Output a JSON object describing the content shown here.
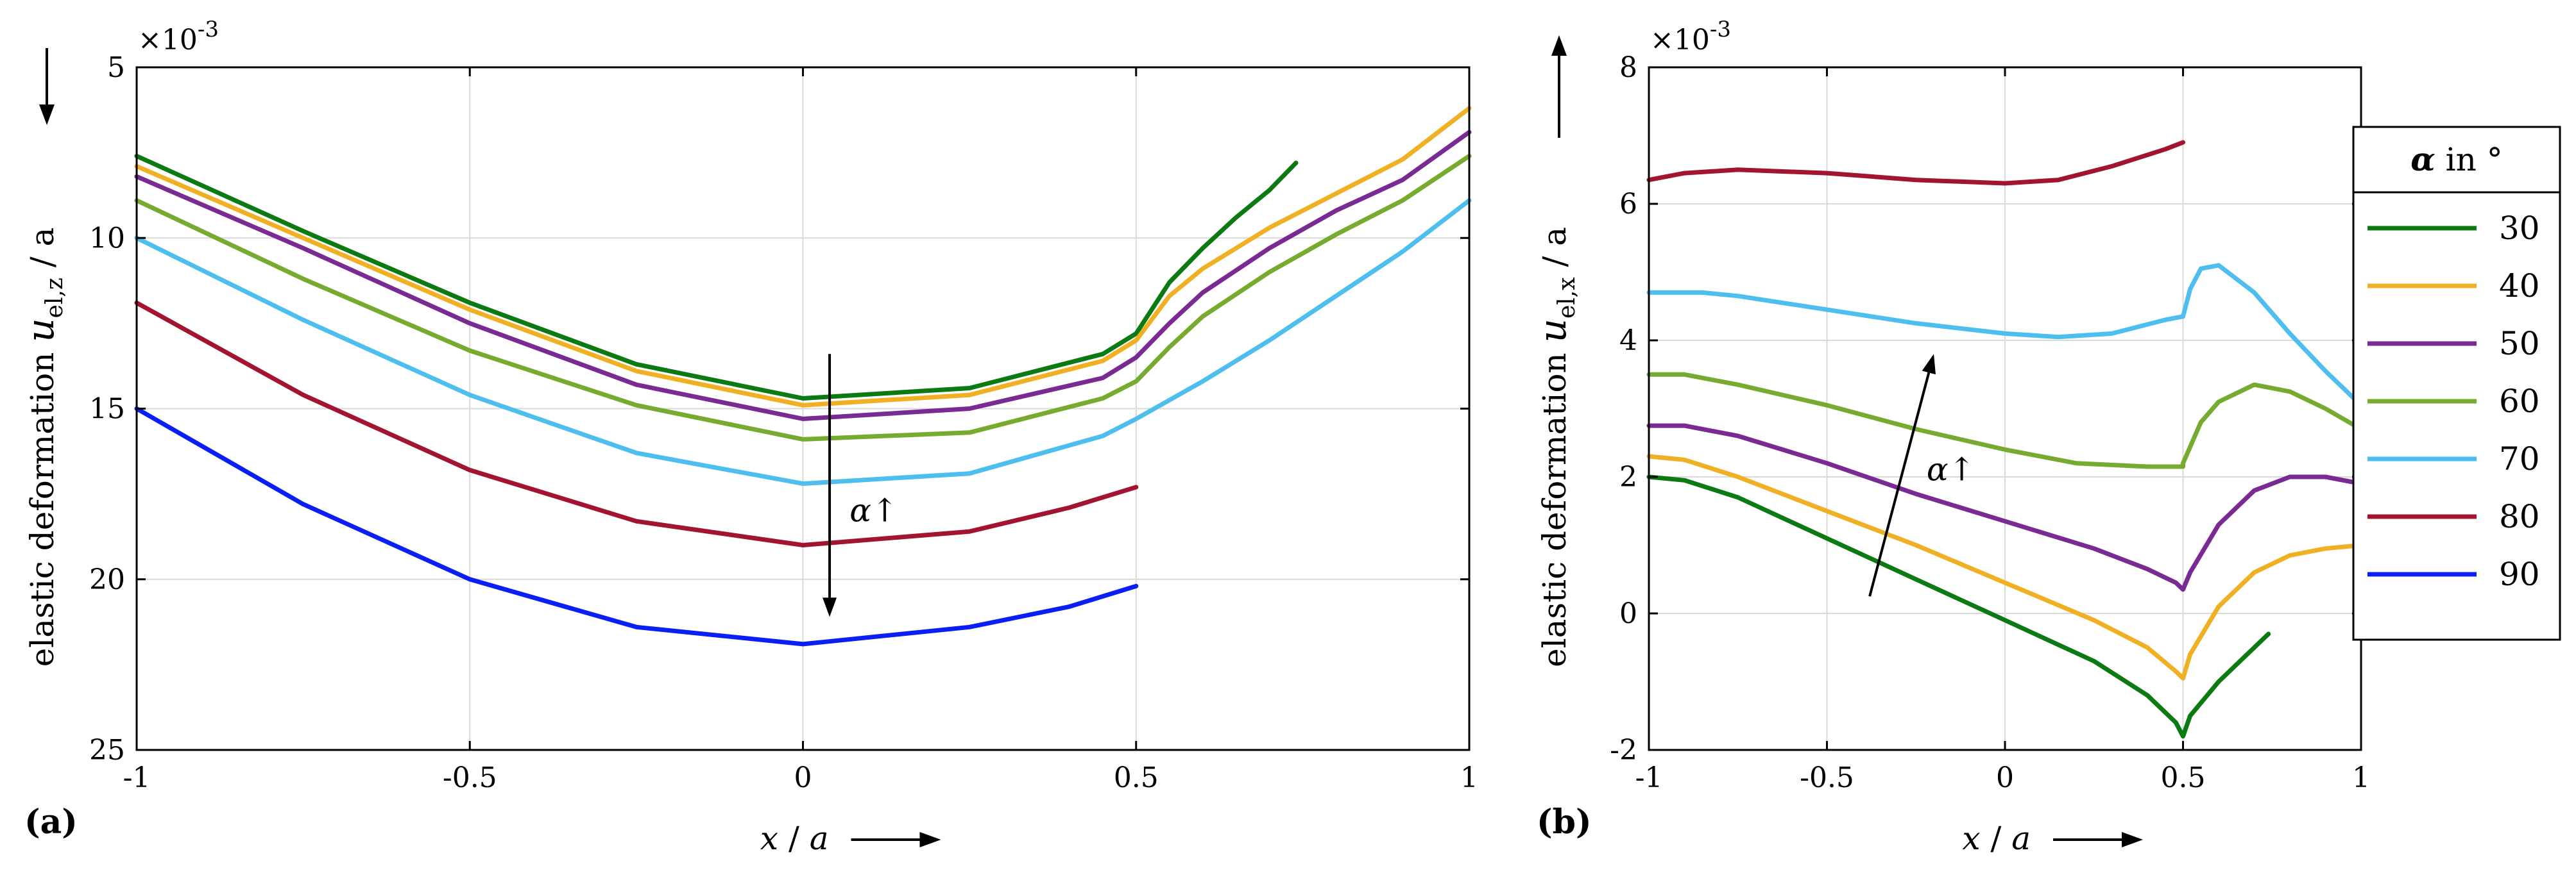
{
  "figure": {
    "legend": {
      "title_symbol": "α",
      "title_suffix": "in °",
      "entries": [
        {
          "label": "30",
          "color": "#0b7a13"
        },
        {
          "label": "40",
          "color": "#f0b023"
        },
        {
          "label": "50",
          "color": "#7a2b93"
        },
        {
          "label": "60",
          "color": "#76ab2f"
        },
        {
          "label": "70",
          "color": "#4dbeee"
        },
        {
          "label": "80",
          "color": "#a2142f"
        },
        {
          "label": "90",
          "color": "#0a1ff5"
        }
      ]
    }
  },
  "chart_data": [
    {
      "type": "line",
      "panel_label": "(a)",
      "exponent_label": "×10",
      "exponent_power": "-3",
      "x_label_var": "x",
      "x_label_sep": " / ",
      "x_label_unit": "a",
      "y_label_text": "elastic deformation",
      "y_label_var": "u",
      "y_label_sub": "el,z",
      "y_label_unit": " / a",
      "y_reversed": true,
      "xlim": [
        -1,
        1
      ],
      "ylim": [
        5,
        25
      ],
      "xticks": [
        -1,
        -0.5,
        0,
        0.5,
        1
      ],
      "xtick_labels": [
        "-1",
        "-0.5",
        "0",
        "0.5",
        "1"
      ],
      "yticks": [
        5,
        10,
        15,
        20,
        25
      ],
      "ytick_labels": [
        "5",
        "10",
        "15",
        "20",
        "25"
      ],
      "grid": true,
      "annotation": "α↑",
      "annotation_arrow": {
        "from": [
          0.04,
          13.4
        ],
        "to": [
          0.04,
          21.1
        ],
        "text_at": [
          0.07,
          18.0
        ]
      },
      "series": [
        {
          "name": "30",
          "color": "#0b7a13",
          "points": [
            [
              -1,
              7.6
            ],
            [
              -0.75,
              9.8
            ],
            [
              -0.5,
              11.9
            ],
            [
              -0.25,
              13.7
            ],
            [
              0,
              14.7
            ],
            [
              0.25,
              14.4
            ],
            [
              0.45,
              13.4
            ],
            [
              0.5,
              12.8
            ],
            [
              0.55,
              11.3
            ],
            [
              0.6,
              10.3
            ],
            [
              0.65,
              9.4
            ],
            [
              0.7,
              8.6
            ],
            [
              0.74,
              7.8
            ]
          ]
        },
        {
          "name": "40",
          "color": "#f0b023",
          "points": [
            [
              -1,
              7.9
            ],
            [
              -0.75,
              10.0
            ],
            [
              -0.5,
              12.1
            ],
            [
              -0.25,
              13.9
            ],
            [
              0,
              14.9
            ],
            [
              0.25,
              14.6
            ],
            [
              0.45,
              13.6
            ],
            [
              0.5,
              13.0
            ],
            [
              0.55,
              11.7
            ],
            [
              0.6,
              10.9
            ],
            [
              0.7,
              9.7
            ],
            [
              0.8,
              8.7
            ],
            [
              0.9,
              7.7
            ],
            [
              1,
              6.2
            ]
          ]
        },
        {
          "name": "50",
          "color": "#7a2b93",
          "points": [
            [
              -1,
              8.2
            ],
            [
              -0.75,
              10.3
            ],
            [
              -0.5,
              12.5
            ],
            [
              -0.25,
              14.3
            ],
            [
              0,
              15.3
            ],
            [
              0.25,
              15.0
            ],
            [
              0.45,
              14.1
            ],
            [
              0.5,
              13.5
            ],
            [
              0.55,
              12.5
            ],
            [
              0.6,
              11.6
            ],
            [
              0.7,
              10.3
            ],
            [
              0.8,
              9.2
            ],
            [
              0.9,
              8.3
            ],
            [
              1,
              6.9
            ]
          ]
        },
        {
          "name": "60",
          "color": "#76ab2f",
          "points": [
            [
              -1,
              8.9
            ],
            [
              -0.75,
              11.2
            ],
            [
              -0.5,
              13.3
            ],
            [
              -0.25,
              14.9
            ],
            [
              0,
              15.9
            ],
            [
              0.25,
              15.7
            ],
            [
              0.45,
              14.7
            ],
            [
              0.5,
              14.2
            ],
            [
              0.55,
              13.2
            ],
            [
              0.6,
              12.3
            ],
            [
              0.7,
              11.0
            ],
            [
              0.8,
              9.9
            ],
            [
              0.9,
              8.9
            ],
            [
              1,
              7.6
            ]
          ]
        },
        {
          "name": "70",
          "color": "#4dbeee",
          "points": [
            [
              -1,
              10.0
            ],
            [
              -0.75,
              12.4
            ],
            [
              -0.5,
              14.6
            ],
            [
              -0.25,
              16.3
            ],
            [
              0,
              17.2
            ],
            [
              0.25,
              16.9
            ],
            [
              0.45,
              15.8
            ],
            [
              0.5,
              15.3
            ],
            [
              0.6,
              14.2
            ],
            [
              0.7,
              13.0
            ],
            [
              0.8,
              11.7
            ],
            [
              0.9,
              10.4
            ],
            [
              1,
              8.9
            ]
          ]
        },
        {
          "name": "80",
          "color": "#a2142f",
          "points": [
            [
              -1,
              11.9
            ],
            [
              -0.75,
              14.6
            ],
            [
              -0.5,
              16.8
            ],
            [
              -0.25,
              18.3
            ],
            [
              0,
              19.0
            ],
            [
              0.25,
              18.6
            ],
            [
              0.4,
              17.9
            ],
            [
              0.5,
              17.3
            ]
          ]
        },
        {
          "name": "90",
          "color": "#0a1ff5",
          "points": [
            [
              -1,
              15.0
            ],
            [
              -0.75,
              17.8
            ],
            [
              -0.5,
              20.0
            ],
            [
              -0.25,
              21.4
            ],
            [
              0,
              21.9
            ],
            [
              0.25,
              21.4
            ],
            [
              0.4,
              20.8
            ],
            [
              0.5,
              20.2
            ]
          ]
        }
      ]
    },
    {
      "type": "line",
      "panel_label": "(b)",
      "exponent_label": "×10",
      "exponent_power": "-3",
      "x_label_var": "x",
      "x_label_sep": " / ",
      "x_label_unit": "a",
      "y_label_text": "elastic deformation",
      "y_label_var": "u",
      "y_label_sub": "el,x",
      "y_label_unit": " / a",
      "y_reversed": false,
      "xlim": [
        -1,
        1
      ],
      "ylim": [
        -2,
        8
      ],
      "xticks": [
        -1,
        -0.5,
        0,
        0.5,
        1
      ],
      "xtick_labels": [
        "-1",
        "-0.5",
        "0",
        "0.5",
        "1"
      ],
      "yticks": [
        -2,
        0,
        2,
        4,
        6,
        8
      ],
      "ytick_labels": [
        "-2",
        "0",
        "2",
        "4",
        "6",
        "8"
      ],
      "grid": true,
      "annotation": "α↑",
      "annotation_arrow": {
        "from": [
          -0.38,
          0.25
        ],
        "to": [
          -0.2,
          3.8
        ],
        "text_at": [
          -0.22,
          2.1
        ]
      },
      "series": [
        {
          "name": "30",
          "color": "#0b7a13",
          "points": [
            [
              -1,
              2.0
            ],
            [
              -0.9,
              1.95
            ],
            [
              -0.75,
              1.7
            ],
            [
              -0.5,
              1.1
            ],
            [
              -0.25,
              0.5
            ],
            [
              0,
              -0.1
            ],
            [
              0.25,
              -0.7
            ],
            [
              0.4,
              -1.2
            ],
            [
              0.48,
              -1.6
            ],
            [
              0.5,
              -1.8
            ],
            [
              0.52,
              -1.5
            ],
            [
              0.6,
              -1.0
            ],
            [
              0.68,
              -0.6
            ],
            [
              0.74,
              -0.3
            ]
          ]
        },
        {
          "name": "40",
          "color": "#f0b023",
          "points": [
            [
              -1,
              2.3
            ],
            [
              -0.9,
              2.25
            ],
            [
              -0.75,
              2.0
            ],
            [
              -0.5,
              1.5
            ],
            [
              -0.25,
              1.0
            ],
            [
              0,
              0.45
            ],
            [
              0.25,
              -0.1
            ],
            [
              0.4,
              -0.5
            ],
            [
              0.48,
              -0.85
            ],
            [
              0.5,
              -0.95
            ],
            [
              0.52,
              -0.6
            ],
            [
              0.6,
              0.1
            ],
            [
              0.7,
              0.6
            ],
            [
              0.8,
              0.85
            ],
            [
              0.9,
              0.95
            ],
            [
              1,
              1.0
            ]
          ]
        },
        {
          "name": "50",
          "color": "#7a2b93",
          "points": [
            [
              -1,
              2.75
            ],
            [
              -0.9,
              2.75
            ],
            [
              -0.75,
              2.6
            ],
            [
              -0.5,
              2.2
            ],
            [
              -0.25,
              1.75
            ],
            [
              0,
              1.35
            ],
            [
              0.25,
              0.95
            ],
            [
              0.4,
              0.65
            ],
            [
              0.48,
              0.45
            ],
            [
              0.5,
              0.35
            ],
            [
              0.52,
              0.6
            ],
            [
              0.6,
              1.3
            ],
            [
              0.7,
              1.8
            ],
            [
              0.8,
              2.0
            ],
            [
              0.9,
              2.0
            ],
            [
              1,
              1.9
            ]
          ]
        },
        {
          "name": "60",
          "color": "#76ab2f",
          "points": [
            [
              -1,
              3.5
            ],
            [
              -0.9,
              3.5
            ],
            [
              -0.75,
              3.35
            ],
            [
              -0.5,
              3.05
            ],
            [
              -0.25,
              2.7
            ],
            [
              0,
              2.4
            ],
            [
              0.2,
              2.2
            ],
            [
              0.4,
              2.15
            ],
            [
              0.5,
              2.15
            ],
            [
              0.5,
              2.2
            ],
            [
              0.55,
              2.8
            ],
            [
              0.6,
              3.1
            ],
            [
              0.7,
              3.35
            ],
            [
              0.8,
              3.25
            ],
            [
              0.9,
              3.0
            ],
            [
              1,
              2.7
            ]
          ]
        },
        {
          "name": "70",
          "color": "#4dbeee",
          "points": [
            [
              -1,
              4.7
            ],
            [
              -0.85,
              4.7
            ],
            [
              -0.75,
              4.65
            ],
            [
              -0.5,
              4.45
            ],
            [
              -0.25,
              4.25
            ],
            [
              0,
              4.1
            ],
            [
              0.15,
              4.05
            ],
            [
              0.3,
              4.1
            ],
            [
              0.45,
              4.3
            ],
            [
              0.5,
              4.35
            ],
            [
              0.52,
              4.75
            ],
            [
              0.55,
              5.05
            ],
            [
              0.6,
              5.1
            ],
            [
              0.7,
              4.7
            ],
            [
              0.8,
              4.1
            ],
            [
              0.9,
              3.55
            ],
            [
              1,
              3.05
            ]
          ]
        },
        {
          "name": "80",
          "color": "#a2142f",
          "points": [
            [
              -1,
              6.35
            ],
            [
              -0.9,
              6.45
            ],
            [
              -0.75,
              6.5
            ],
            [
              -0.5,
              6.45
            ],
            [
              -0.25,
              6.35
            ],
            [
              0,
              6.3
            ],
            [
              0.15,
              6.35
            ],
            [
              0.3,
              6.55
            ],
            [
              0.45,
              6.8
            ],
            [
              0.5,
              6.9
            ]
          ]
        }
      ]
    }
  ]
}
